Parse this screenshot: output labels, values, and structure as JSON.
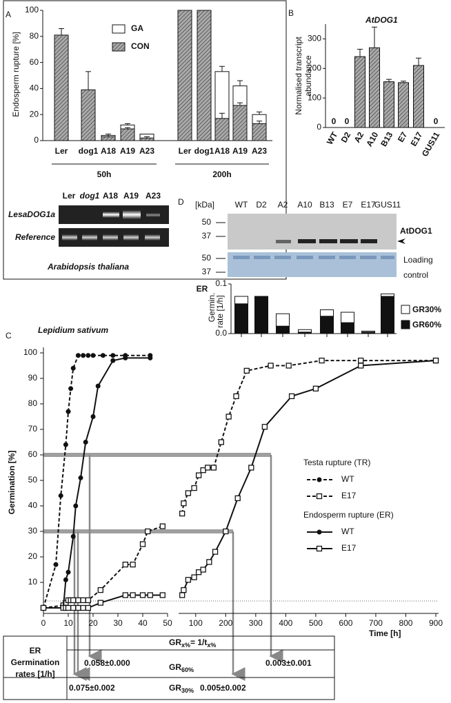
{
  "panel_labels": [
    "A",
    "B",
    "C",
    "D"
  ],
  "chart_data": [
    {
      "type": "bar",
      "ylabel": "Endosperm rupture [%]",
      "categories": [
        "Ler",
        "dog1",
        "A18",
        "A19",
        "A23",
        "Ler",
        "dog1",
        "A18",
        "A19",
        "A23"
      ],
      "group_labels": [
        "50h",
        "200h"
      ],
      "series": [
        {
          "name": "GA",
          "color": "#ffffff",
          "values": [
            null,
            null,
            4,
            12,
            5,
            100,
            100,
            53,
            42,
            20
          ],
          "errors": [
            null,
            null,
            null,
            1,
            null,
            null,
            null,
            4,
            4,
            2
          ]
        },
        {
          "name": "CON",
          "color": "#999999",
          "pattern": "hatch",
          "values": [
            81,
            39,
            3,
            9,
            2,
            100,
            100,
            17,
            27,
            13
          ],
          "errors": [
            5,
            14,
            2,
            1,
            1,
            null,
            null,
            4,
            2,
            2
          ]
        }
      ],
      "ylim": [
        0,
        100
      ],
      "yticks": [
        0,
        20,
        40,
        60,
        80,
        100
      ]
    },
    {
      "type": "bar",
      "title": "AtDOG1",
      "ylabel": [
        "Normalised transcript",
        "abundance"
      ],
      "categories": [
        "WT",
        "D2",
        "A2",
        "A10",
        "B13",
        "E7",
        "E17",
        "GUS11"
      ],
      "values": [
        0,
        0,
        240,
        270,
        155,
        152,
        210,
        0
      ],
      "errors": [
        null,
        null,
        25,
        70,
        8,
        5,
        25,
        null
      ],
      "color": "#999999",
      "pattern": "hatch",
      "ylim": [
        0,
        350
      ],
      "yticks": [
        0,
        100,
        200,
        300
      ]
    },
    {
      "type": "bar",
      "ylabel": [
        "ER",
        "Germin.",
        "rate [1/h]"
      ],
      "categories": [
        "WT",
        "D2",
        "A2",
        "A10",
        "B13",
        "E7",
        "E17",
        "GUS11"
      ],
      "series": [
        {
          "name": "GR30%",
          "color": "#ffffff",
          "values": [
            0.075,
            0.075,
            0.04,
            0.008,
            0.048,
            0.043,
            0.005,
            0.08
          ]
        },
        {
          "name": "GR60%",
          "color": "#111111",
          "values": [
            0.06,
            0.075,
            0.015,
            0.003,
            0.035,
            0.022,
            0.003,
            0.075
          ]
        }
      ],
      "ylim": [
        0,
        0.1
      ],
      "yticks": [
        {
          "value": 0,
          "label": "0.0"
        },
        0.1
      ]
    },
    {
      "type": "line",
      "title": "Lepidium sativum",
      "xlabel": "Time [h]",
      "ylabel": "Germination [%]",
      "xlim": [
        0,
        900
      ],
      "x_break": 50,
      "xticks": [
        0,
        10,
        20,
        30,
        40,
        50,
        100,
        200,
        300,
        400,
        500,
        600,
        700,
        800,
        900
      ],
      "ylim": [
        0,
        100
      ],
      "yticks": [
        10,
        20,
        30,
        40,
        50,
        60,
        70,
        80,
        90,
        100
      ],
      "groups": [
        {
          "name": "Testa rupture (TR)",
          "series": [
            {
              "name": "WT",
              "dashed": true,
              "marker": "circle",
              "x": [
                0,
                5,
                7,
                9,
                10,
                11,
                12,
                14,
                16,
                18,
                20,
                24,
                28,
                33,
                43
              ],
              "values": [
                0,
                17,
                44,
                64,
                77,
                86,
                94,
                99,
                99,
                99,
                99,
                99,
                99,
                99,
                99
              ]
            },
            {
              "name": "E17",
              "dashed": true,
              "marker": "square",
              "x": [
                0,
                8,
                9,
                10,
                11,
                12,
                14,
                16,
                18,
                23,
                33,
                36,
                40,
                42,
                48,
                55,
                60,
                75,
                95,
                110,
                125,
                140,
                160,
                185,
                210,
                235,
                270,
                350,
                410,
                520,
                650,
                900
              ],
              "values": [
                0,
                1,
                2,
                3,
                3,
                3,
                3,
                3,
                3,
                7,
                17,
                17,
                25,
                30,
                32,
                37,
                41,
                45,
                47,
                52,
                54,
                55,
                55,
                65,
                75,
                83,
                93,
                95,
                95,
                97,
                97,
                97
              ]
            }
          ]
        },
        {
          "name": "Endosperm rupture (ER)",
          "series": [
            {
              "name": "WT",
              "dashed": false,
              "marker": "circle",
              "x": [
                0,
                8,
                9,
                10,
                12,
                13,
                15,
                17,
                20,
                22,
                28,
                33,
                43
              ],
              "values": [
                0,
                0,
                11,
                14,
                28,
                40,
                51,
                65,
                75,
                87,
                97,
                98,
                98
              ]
            },
            {
              "name": "E17",
              "dashed": false,
              "marker": "square",
              "x": [
                0,
                8,
                9,
                10,
                12,
                14,
                16,
                18,
                23,
                33,
                36,
                40,
                43,
                48,
                55,
                60,
                75,
                95,
                110,
                125,
                145,
                165,
                200,
                240,
                285,
                330,
                420,
                500,
                650,
                900
              ],
              "values": [
                0,
                0,
                0,
                0,
                0,
                0,
                0,
                0,
                2,
                5,
                5,
                5,
                5,
                5,
                5,
                7,
                11,
                12,
                14,
                15,
                18,
                22,
                30,
                43,
                55,
                71,
                83,
                86,
                95,
                97
              ]
            }
          ]
        }
      ]
    }
  ],
  "gel_a": {
    "lanes": [
      "Ler",
      "dog1",
      "A18",
      "A19",
      "A23"
    ],
    "rows": [
      "LesaDOG1a",
      "Reference"
    ],
    "caption": "Arabidopsis thaliana"
  },
  "gel_d": {
    "unit": "[kDa]",
    "markers": [
      50,
      37,
      50,
      37
    ],
    "band_label": "AtDOG1",
    "control": [
      "Loading",
      "control"
    ]
  },
  "table": {
    "header": [
      "ER",
      "Germination",
      "rates [1/h]"
    ],
    "formula": [
      "GR",
      "x%",
      "= 1/t",
      "x%"
    ],
    "rows": [
      {
        "label": [
          "GR",
          "60%"
        ],
        "left": "0.058±0.000",
        "right": "0.003±0.001"
      },
      {
        "label": [
          "GR",
          "30%"
        ],
        "left": "0.075±0.002",
        "right": "0.005±0.002"
      }
    ]
  }
}
